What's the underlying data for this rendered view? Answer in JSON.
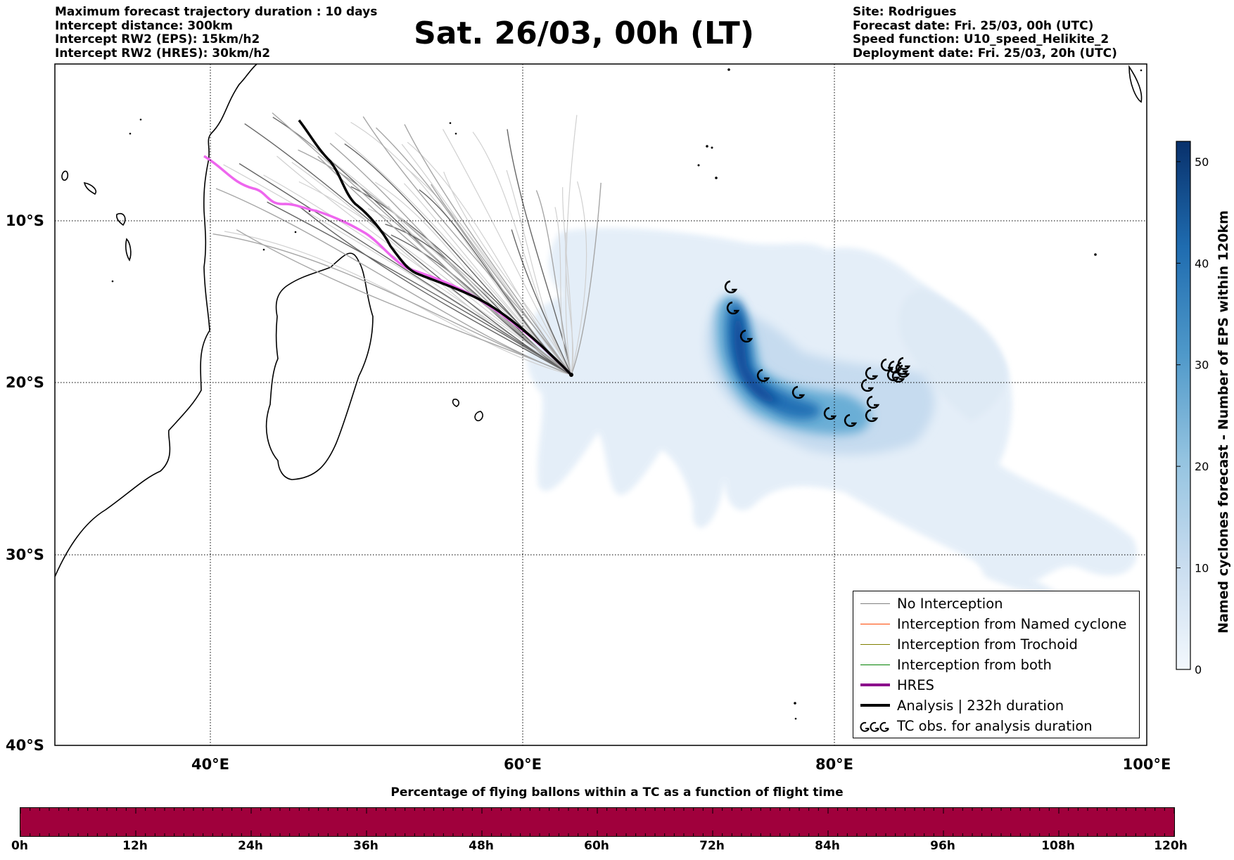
{
  "header": {
    "left_lines": [
      "Maximum forecast trajectory duration : 10 days",
      "Intercept distance: 300km",
      "Intercept RW2 (EPS):  15km/h2",
      "Intercept RW2 (HRES): 30km/h2"
    ],
    "title": "Sat. 26/03, 00h (LT)",
    "right_lines": [
      "Site: Rodrigues",
      "Forecast date: Fri. 25/03, 00h (UTC)",
      "Speed function: U10_speed_Helikite_2",
      "Deployment date: Fri. 25/03, 20h (UTC)"
    ]
  },
  "map": {
    "lon_range": [
      30,
      100
    ],
    "lat_range": [
      0,
      -40
    ],
    "lat_labels": [
      "10°S",
      "20°S",
      "30°S",
      "40°S"
    ],
    "lon_labels": [
      "40°E",
      "60°E",
      "80°E",
      "100°E"
    ],
    "launch_site": "Rodrigues",
    "colors": {
      "hres": "#8b008b",
      "hres_light": "#ee66ee",
      "analysis": "#000000",
      "no_interception": "#808080",
      "named_cyclone": "#ff4500",
      "trochoid": "#808000",
      "both": "#008000",
      "density_scale": "Blues"
    }
  },
  "colorbar": {
    "title": "Named cyclones forecast - Number of EPS within 120km",
    "ticks": [
      "0",
      "10",
      "20",
      "30",
      "40",
      "50"
    ],
    "max": 52
  },
  "legend": {
    "items": [
      {
        "label": "No Interception",
        "type": "line",
        "color": "#808080"
      },
      {
        "label": "Interception from Named cyclone",
        "type": "line",
        "color": "#ff4500"
      },
      {
        "label": "Interception from Trochoid",
        "type": "line",
        "color": "#808000"
      },
      {
        "label": "Interception from both",
        "type": "line",
        "color": "#008000"
      },
      {
        "label": "HRES",
        "type": "thick",
        "color": "#8b008b"
      },
      {
        "label": "Analysis | 232h duration",
        "type": "thick",
        "color": "#000000"
      },
      {
        "label": "TC obs. for analysis duration",
        "type": "symbol",
        "color": "#000000"
      }
    ]
  },
  "bottom": {
    "title": "Percentage of flying ballons within a TC as a function of flight time",
    "ticks": [
      "0h",
      "12h",
      "24h",
      "36h",
      "48h",
      "60h",
      "72h",
      "84h",
      "96h",
      "108h",
      "120h"
    ],
    "bar_color": "#a0003c"
  }
}
